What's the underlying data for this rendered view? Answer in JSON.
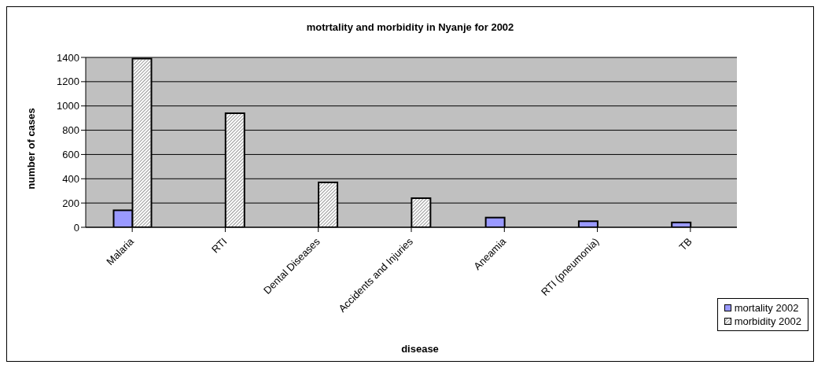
{
  "chart_data": {
    "type": "bar",
    "title": "motrtality and morbidity in Nyanje for 2002",
    "xlabel": "disease",
    "ylabel": "number of cases",
    "categories": [
      "Malaria",
      "RTI",
      "Dental Diseases",
      "Accidents and Injuries",
      "Aneamia",
      "RTI (pneumonia)",
      "TB"
    ],
    "series": [
      {
        "name": "mortality 2002",
        "color": "#9999ff",
        "values": [
          140,
          null,
          null,
          null,
          80,
          50,
          40
        ]
      },
      {
        "name": "morbidity 2002",
        "color": "#ffffff",
        "values": [
          1390,
          940,
          370,
          240,
          null,
          null,
          null
        ]
      }
    ],
    "ylim": [
      0,
      1400
    ],
    "yticks": [
      0,
      200,
      400,
      600,
      800,
      1000,
      1200,
      1400
    ],
    "grid": "y",
    "legend": "bottom right"
  }
}
